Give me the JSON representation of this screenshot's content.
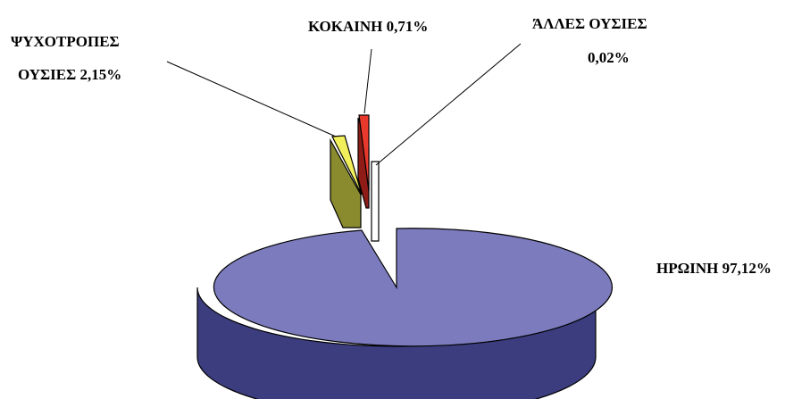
{
  "chart_data": {
    "type": "pie",
    "variant": "3d-exploded",
    "title": "",
    "slices": [
      {
        "label": "ΗΡΩΙΝΗ 97,12%",
        "name": "ΗΡΩΙΝΗ",
        "value": 97.12,
        "top_color": "#7b7bbd",
        "side_color": "#3b3d7e"
      },
      {
        "label_lines": [
          "ΨΥΧΟΤΡΟΠΕΣ",
          "ΟΥΣΙΕΣ 2,15%"
        ],
        "name": "ΨΥΧΟΤΡΟΠΕΣ ΟΥΣΙΕΣ",
        "value": 2.15,
        "top_color": "#f2ef5c",
        "side_color": "#8a8a2e"
      },
      {
        "label": "ΚΟΚΑΙΝΗ 0,71%",
        "name": "ΚΟΚΑΙΝΗ",
        "value": 0.71,
        "top_color": "#e8392c",
        "side_color": "#8f1c16"
      },
      {
        "label_lines": [
          "ΆΛΛΕΣ ΟΥΣΙΕΣ",
          "0,02%"
        ],
        "name": "ΆΛΛΕΣ ΟΥΣΙΕΣ",
        "value": 0.02,
        "top_color": "#ffffff",
        "side_color": "#ffffff"
      }
    ],
    "legend": "none",
    "data_labels": "outside with leader lines"
  }
}
